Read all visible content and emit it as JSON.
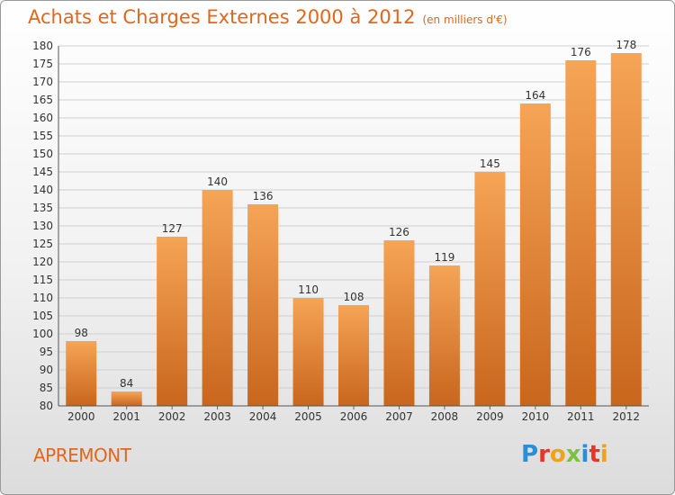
{
  "header": {
    "title": "Achats et Charges Externes 2000 à 2012",
    "subtitle": "(en milliers d'€)"
  },
  "footer": {
    "city": "APREMONT",
    "logo_text": "Proxiti",
    "logo_colors": [
      "#2a8fd6",
      "#e8352a",
      "#f0a21b",
      "#7bc142",
      "#2a8fd6",
      "#e8352a",
      "#f0a21b"
    ]
  },
  "colors": {
    "bar_top": "#f6a456",
    "bar_bottom": "#c8661c",
    "accent": "#e2661c"
  },
  "chart_data": {
    "type": "bar",
    "title": "Achats et Charges Externes 2000 à 2012",
    "subtitle": "(en milliers d'€)",
    "xlabel": "",
    "ylabel": "",
    "categories": [
      "2000",
      "2001",
      "2002",
      "2003",
      "2004",
      "2005",
      "2006",
      "2007",
      "2008",
      "2009",
      "2010",
      "2011",
      "2012"
    ],
    "values": [
      98,
      84,
      127,
      140,
      136,
      110,
      108,
      126,
      119,
      145,
      164,
      176,
      178
    ],
    "ylim": [
      80,
      180
    ],
    "yticks": [
      80,
      85,
      90,
      95,
      100,
      105,
      110,
      115,
      120,
      125,
      130,
      135,
      140,
      145,
      150,
      155,
      160,
      165,
      170,
      175,
      180
    ],
    "grid": true,
    "legend": "none"
  }
}
